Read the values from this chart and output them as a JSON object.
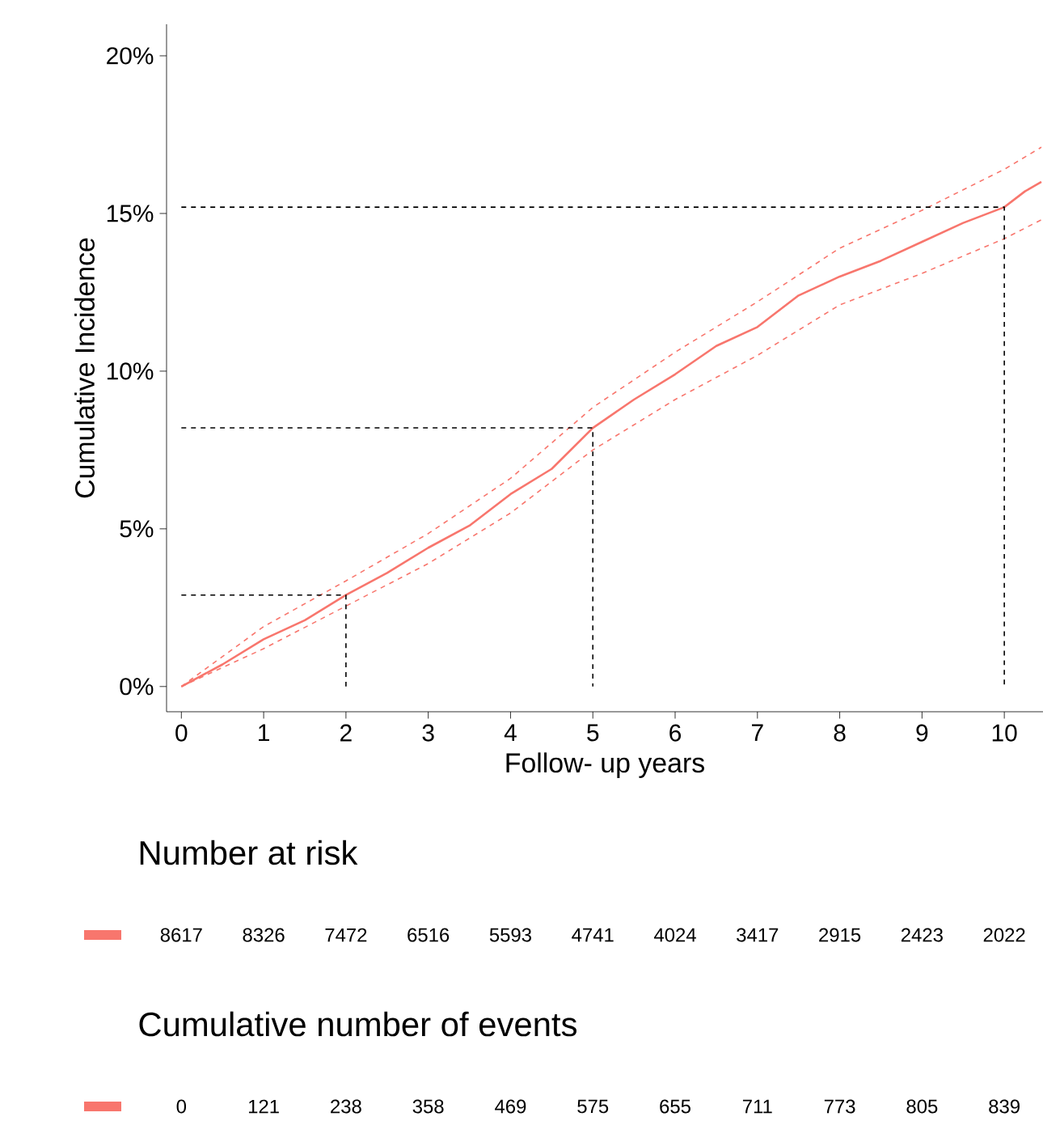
{
  "chart_data": [
    {
      "type": "line",
      "xlabel": "Follow- up years",
      "ylabel": "Cumulative Incidence",
      "xlim": [
        -0.18,
        10.47
      ],
      "ylim": [
        -0.8,
        21
      ],
      "xticks": [
        0,
        1,
        2,
        3,
        4,
        5,
        6,
        7,
        8,
        9,
        10
      ],
      "yticks": [
        {
          "value": 0,
          "label": "0%"
        },
        {
          "value": 5,
          "label": "5%"
        },
        {
          "value": 10,
          "label": "10%"
        },
        {
          "value": 15,
          "label": "15%"
        },
        {
          "value": 20,
          "label": "20%"
        }
      ],
      "series": [
        {
          "color": "#f8766d",
          "line_style": "solid",
          "x": [
            0,
            0.5,
            1,
            1.5,
            2,
            2.5,
            3,
            3.5,
            4,
            4.5,
            5,
            5.5,
            6,
            6.5,
            7,
            7.5,
            8,
            8.5,
            9,
            9.5,
            10,
            10.25,
            10.45
          ],
          "values": [
            0,
            0.7,
            1.5,
            2.1,
            2.9,
            3.6,
            4.4,
            5.1,
            6.1,
            6.9,
            8.2,
            9.1,
            9.9,
            10.8,
            11.4,
            12.4,
            13.0,
            13.5,
            14.1,
            14.7,
            15.2,
            15.7,
            16.0
          ]
        },
        {
          "color": "#f8766d",
          "line_style": "dashed",
          "x": [
            0,
            1,
            2,
            3,
            4,
            5,
            6,
            7,
            8,
            9,
            10,
            10.45
          ],
          "values": [
            0,
            1.2,
            2.55,
            3.9,
            5.5,
            7.5,
            9.1,
            10.5,
            12.1,
            13.1,
            14.2,
            14.8
          ]
        },
        {
          "color": "#f8766d",
          "line_style": "dashed",
          "x": [
            0,
            1,
            2,
            3,
            4,
            5,
            6,
            7,
            8,
            9,
            10,
            10.45
          ],
          "values": [
            0,
            1.9,
            3.35,
            4.85,
            6.6,
            8.85,
            10.6,
            12.2,
            13.9,
            15.1,
            16.4,
            17.1
          ]
        },
        {
          "color": "#000000",
          "line_style": "dashed",
          "x": [
            0,
            2,
            2
          ],
          "values": [
            2.9,
            2.9,
            0
          ]
        },
        {
          "color": "#000000",
          "line_style": "dashed",
          "x": [
            0,
            5,
            5
          ],
          "values": [
            8.2,
            8.2,
            0
          ]
        },
        {
          "color": "#000000",
          "line_style": "dashed",
          "x": [
            0,
            10,
            10
          ],
          "values": [
            15.2,
            15.2,
            0
          ]
        }
      ]
    },
    {
      "type": "other",
      "title": "Number at risk",
      "categories": [
        null,
        null,
        null,
        null,
        null,
        null,
        null,
        null,
        null,
        null,
        null
      ],
      "data_labels": true,
      "series": [
        {
          "color": "#f8766d",
          "values": [
            8617,
            8326,
            7472,
            6516,
            5593,
            4741,
            4024,
            3417,
            2915,
            2423,
            2022
          ]
        }
      ]
    },
    {
      "type": "other",
      "title": "Cumulative number of events",
      "categories": [
        null,
        null,
        null,
        null,
        null,
        null,
        null,
        null,
        null,
        null,
        null
      ],
      "data_labels": true,
      "series": [
        {
          "color": "#f8766d",
          "values": [
            0,
            121,
            238,
            358,
            469,
            575,
            655,
            711,
            773,
            805,
            839
          ]
        }
      ]
    }
  ]
}
